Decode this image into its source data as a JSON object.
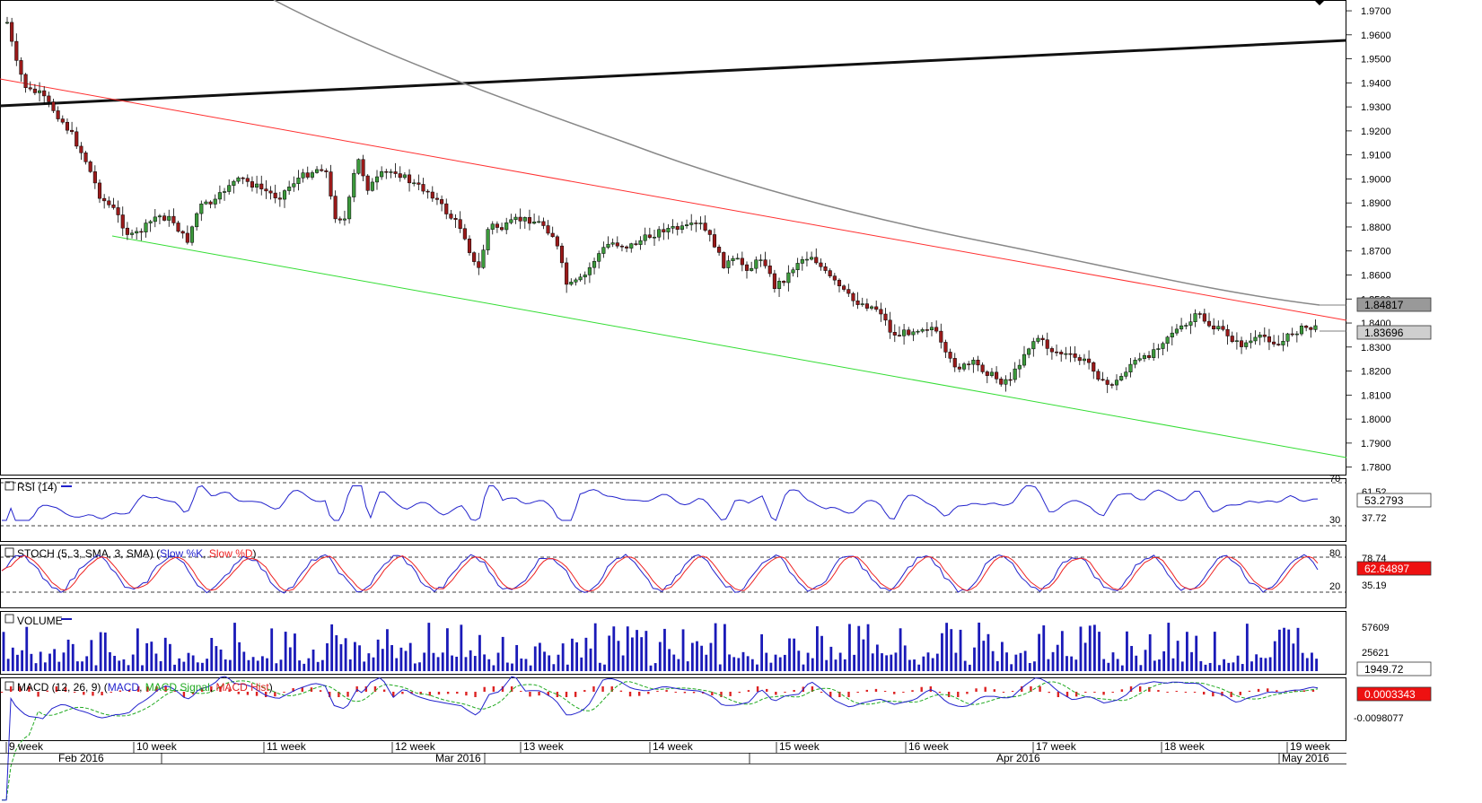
{
  "price": {
    "y_ticks": [
      "1.9700",
      "1.9600",
      "1.9500",
      "1.9400",
      "1.9300",
      "1.9200",
      "1.9100",
      "1.9000",
      "1.8900",
      "1.8800",
      "1.8700",
      "1.8600",
      "1.8500",
      "1.8400",
      "1.8300",
      "1.8200",
      "1.8100",
      "1.8000",
      "1.7900",
      "1.7800"
    ],
    "ylim": [
      1.7765,
      1.9745
    ],
    "ma_label": "1.84817",
    "last_label": "1.83696",
    "last_value": 1.83696,
    "ma_value": 1.84817
  },
  "rsi": {
    "title": "RSI (14)",
    "levels": [
      "70",
      "61.52",
      "37.72",
      "30"
    ],
    "value_label": "53.2793",
    "current": 53.28
  },
  "stoch": {
    "title": "STOCH (5, 3, SMA, 3, SMA)",
    "k_name": "Slow %K",
    "d_name": "Slow %D",
    "levels": [
      "80",
      "78.74",
      "35.19",
      "20"
    ],
    "value_label": "62.64897",
    "current": 62.65
  },
  "volume": {
    "title": "VOLUME",
    "levels": [
      "57609",
      "25621"
    ],
    "value_label": "1949.72",
    "max": 85000
  },
  "macd": {
    "title": "MACD (12, 26, 9)",
    "macd_name": "MACD",
    "signal_name": "MACD Signal",
    "hist_name": "MACD Hist",
    "levels": [
      "-0.0098077"
    ],
    "value_label": "0.0003343"
  },
  "time_axis": {
    "weeks": [
      "9 week",
      "10 week",
      "11 week",
      "12 week",
      "13 week",
      "14 week",
      "15 week",
      "16 week",
      "17 week",
      "18 week",
      "19 week"
    ],
    "months": [
      "Feb 2016",
      "Mar 2016",
      "Apr 2016",
      "May 2016"
    ]
  },
  "colors": {
    "candle_up": "#3c9a3c",
    "candle_down": "#9a1a1a",
    "channel_upper": "#ff3030",
    "channel_lower": "#33dd33",
    "long_trend": "#111111",
    "moving_average": "#888888",
    "rsi": "#2222cc",
    "stoch_k": "#2222cc",
    "stoch_d": "#ee2222",
    "volume": "#1a1ab8",
    "macd": "#2222cc",
    "signal": "#22aa22",
    "hist": "#dd2222"
  }
}
